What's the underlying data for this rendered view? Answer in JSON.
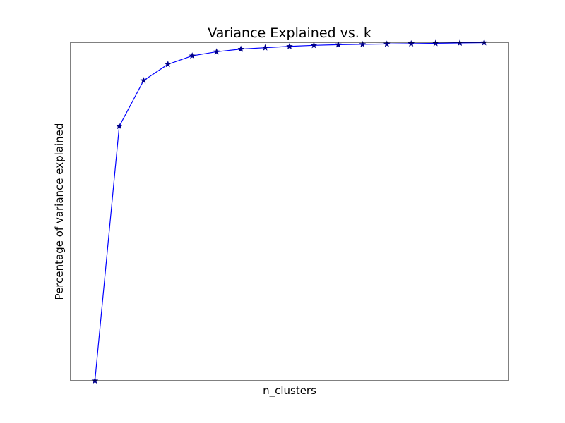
{
  "chart_data": {
    "type": "line",
    "title": "Variance Explained vs. k",
    "xlabel": "n_clusters",
    "ylabel": "Percentage of variance explained",
    "xlim": [
      0,
      18
    ],
    "ylim": [
      0,
      1
    ],
    "x_ticks_shown": false,
    "y_ticks_shown": false,
    "grid": false,
    "line_color": "#0000ff",
    "marker": "star",
    "marker_color": "#00008b",
    "series": [
      {
        "x": [
          1,
          2,
          3,
          4,
          5,
          6,
          7,
          8,
          9,
          10,
          11,
          12,
          13,
          14,
          15,
          16,
          17
        ],
        "values": [
          0.0,
          0.752,
          0.887,
          0.935,
          0.96,
          0.972,
          0.98,
          0.984,
          0.988,
          0.991,
          0.993,
          0.994,
          0.995,
          0.996,
          0.997,
          0.998,
          0.999
        ]
      }
    ]
  }
}
